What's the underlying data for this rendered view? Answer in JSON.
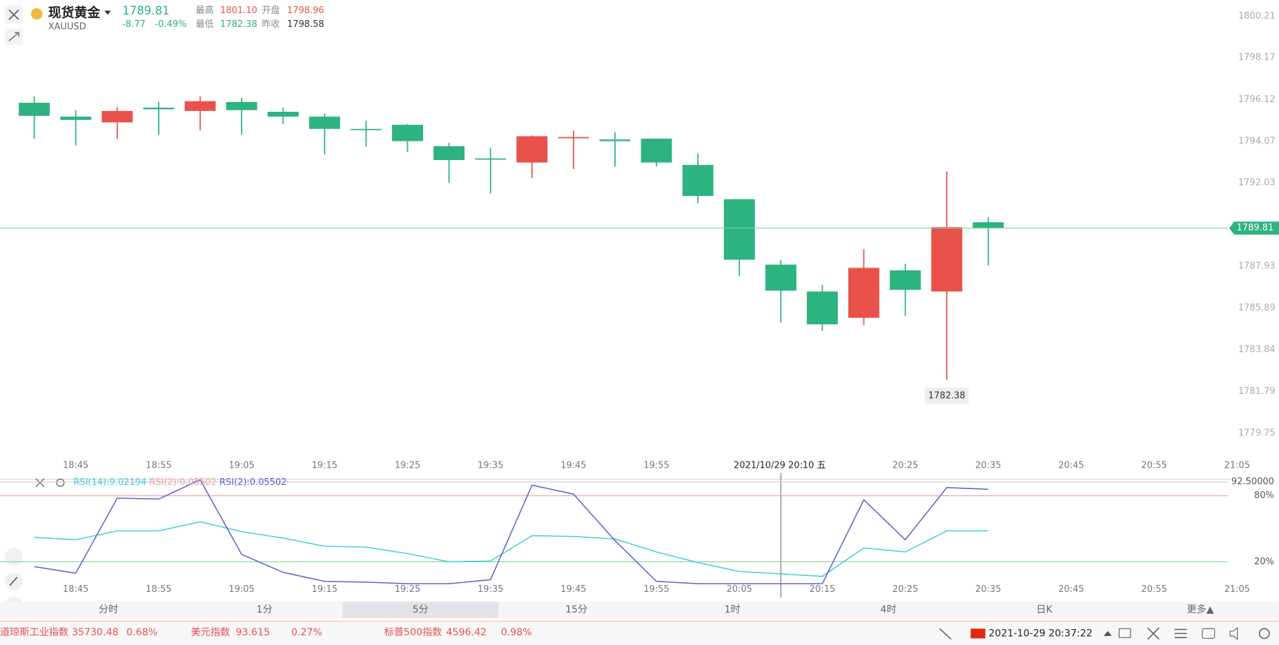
{
  "header": {
    "name": "现货黄金",
    "symbol": "XAUUSD",
    "price": "1789.81",
    "change": "-8.77",
    "change_pct": "-0.49%",
    "high_label": "最高",
    "high": "1801.10",
    "open_label": "开盘",
    "open": "1798.96",
    "low_label": "最低",
    "low": "1782.38",
    "prev_close_label": "昨收",
    "prev_close": "1798.58"
  },
  "chart_data": [
    {
      "type": "candlestick",
      "up_color": "#e8524a",
      "down_color": "#2db37f",
      "categories": [
        null,
        "18:45",
        null,
        "18:55",
        null,
        "19:05",
        null,
        "19:15",
        null,
        "19:25",
        null,
        "19:35",
        null,
        "19:45",
        null,
        "19:55",
        null,
        null,
        null,
        null,
        null,
        "20:25",
        null,
        "20:35",
        null,
        "20:45",
        null,
        "20:55",
        null,
        "21:05"
      ],
      "open": [
        1795.96,
        1795.28,
        1795.0,
        1795.72,
        1795.56,
        1796.0,
        1795.52,
        1795.28,
        1794.68,
        1794.88,
        1793.83,
        1793.23,
        1793.03,
        1794.24,
        1794.16,
        1794.2,
        1792.91,
        1791.23,
        1788.02,
        1786.7,
        1785.41,
        1787.74,
        1786.7,
        1790.1,
        null,
        null,
        null,
        null,
        null,
        null
      ],
      "high": [
        1796.28,
        1795.6,
        1795.76,
        1796.0,
        1796.28,
        1796.2,
        1795.72,
        1795.44,
        1795.08,
        1794.92,
        1793.99,
        1793.75,
        1794.36,
        1794.6,
        1794.52,
        1794.2,
        1793.47,
        1791.23,
        1788.26,
        1787.02,
        1788.78,
        1788.06,
        1792.59,
        1790.35,
        null,
        null,
        null,
        null,
        null,
        null
      ],
      "low": [
        1794.2,
        1793.87,
        1794.2,
        1794.4,
        1794.6,
        1794.4,
        1794.92,
        1793.43,
        1793.8,
        1793.55,
        1792.03,
        1791.51,
        1792.27,
        1792.71,
        1792.83,
        1792.83,
        1791.03,
        1787.46,
        1785.17,
        1784.77,
        1785.05,
        1785.49,
        1782.38,
        1787.98,
        null,
        null,
        null,
        null,
        null,
        null
      ],
      "close": [
        1795.32,
        1795.12,
        1795.56,
        1795.64,
        1796.04,
        1795.6,
        1795.28,
        1794.68,
        1794.64,
        1794.08,
        1793.15,
        1793.19,
        1794.32,
        1794.28,
        1794.08,
        1793.03,
        1791.39,
        1788.26,
        1786.74,
        1785.09,
        1787.86,
        1786.78,
        1789.86,
        1789.81,
        null,
        null,
        null,
        null,
        null,
        null
      ],
      "ylim": [
        1778.6,
        1801.0
      ],
      "yticks": [
        1800.21,
        1798.17,
        1796.12,
        1794.07,
        1792.03,
        1787.93,
        1785.89,
        1783.84,
        1781.79,
        1779.75
      ],
      "crosshair_label": "2021/10/29 20:10 五"
    },
    {
      "type": "line",
      "categories": [
        null,
        "18:45",
        null,
        "18:55",
        null,
        "19:05",
        null,
        "19:15",
        null,
        "19:25",
        null,
        "19:35",
        null,
        "19:45",
        null,
        "19:55",
        null,
        "20:05",
        null,
        "20:15",
        null,
        "20:25",
        null,
        "20:35",
        null,
        "20:45",
        null,
        "20:55",
        null,
        "21:05"
      ],
      "series": [
        {
          "name": "RSI(14):9.02194",
          "color": "#3fd0d8",
          "values": [
            42.2,
            40.0,
            48.1,
            48.1,
            56.3,
            47.4,
            41.5,
            34.1,
            33.3,
            27.4,
            20.0,
            20.7,
            43.7,
            43.0,
            40.7,
            28.9,
            19.3,
            11.1,
            9.02194,
            6.7,
            32.6,
            28.9,
            48.1,
            48.1,
            null,
            null,
            null,
            null,
            null,
            null
          ]
        },
        {
          "name": "RSI(2):0.05502",
          "color": "#5b60d0",
          "values": [
            15.6,
            9.6,
            77.8,
            77.0,
            94.5,
            26.7,
            10.4,
            2.2,
            1.5,
            0.1,
            0.1,
            3.7,
            89.6,
            81.5,
            39.3,
            2.2,
            0.1,
            0.1,
            0.05502,
            0.1,
            76.3,
            40.0,
            87.4,
            85.9,
            null,
            null,
            null,
            null,
            null,
            null
          ]
        }
      ],
      "extra_legend": {
        "text": "RSI(2):0.05502",
        "color": "#f0a0a0"
      },
      "ylim": [
        0,
        95
      ],
      "yticks": [
        {
          "value": 20,
          "label": "20%"
        },
        {
          "value": 80,
          "label": "80%"
        },
        {
          "value": 92.5,
          "label": "92.50000"
        }
      ],
      "level_colors": [
        "#8fd49b",
        "#f2a4a4",
        "#c9c9d2"
      ]
    }
  ],
  "periods": [
    "分时",
    "1分",
    "5分",
    "15分",
    "1时",
    "4时",
    "日K",
    "更多▲"
  ],
  "selected_period": 2,
  "ticker": [
    {
      "name": "道琼斯工业指数",
      "value": "35730.48",
      "change": "0.68%"
    },
    {
      "name": "美元指数",
      "value": "93.615",
      "change": "0.27%"
    },
    {
      "name": "标普500指数",
      "value": "4596.42",
      "change": "0.98%"
    }
  ],
  "status": {
    "datetime": "2021-10-29 20:37:22"
  }
}
